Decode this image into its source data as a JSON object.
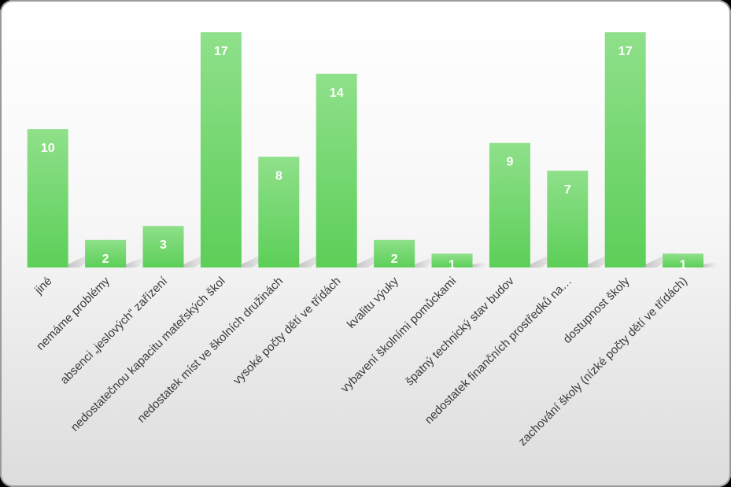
{
  "chart_data": {
    "type": "bar",
    "categories": [
      "jiné",
      "nemáme problémy",
      "absenci „jeslových“ zařízení",
      "nedostatečnou kapacitu mateřských škol",
      "nedostatek míst ve školních družinách",
      "vysoké počty dětí ve třídách",
      "kvalitu výuky",
      "vybavení školními pomůckami",
      "špatný technický stav budov",
      "nedostatek finančních prostředků na…",
      "dostupnost školy",
      "zachování školy (nízké počty dětí ve třídách)"
    ],
    "values": [
      10,
      2,
      3,
      17,
      8,
      14,
      2,
      1,
      9,
      7,
      17,
      1
    ],
    "value_labels": [
      "10",
      "2",
      "3",
      "17",
      "8",
      "14",
      "2",
      "1",
      "9",
      "7",
      "17",
      "1"
    ],
    "ylim": [
      0,
      17
    ],
    "grid": false,
    "legend": "none",
    "bar_color_top": "#8fe08a",
    "bar_color_bottom": "#5ccf58"
  }
}
